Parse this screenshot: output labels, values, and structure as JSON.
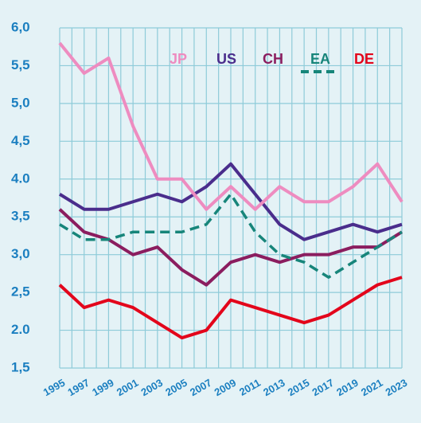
{
  "chart_data": {
    "type": "line",
    "x": [
      1995,
      1997,
      1999,
      2001,
      2003,
      2005,
      2007,
      2009,
      2011,
      2013,
      2015,
      2017,
      2019,
      2021,
      2023
    ],
    "xlim": [
      1995,
      2023
    ],
    "xticks": [
      1995,
      1997,
      1999,
      2001,
      2003,
      2005,
      2007,
      2009,
      2011,
      2013,
      2015,
      2017,
      2019,
      2021,
      2023
    ],
    "ylim": [
      1.5,
      6.0
    ],
    "yticks": [
      {
        "value": 1.5,
        "label": "1,5"
      },
      {
        "value": 2.0,
        "label": "2.0"
      },
      {
        "value": 2.5,
        "label": "2,5"
      },
      {
        "value": 3.0,
        "label": "3,0"
      },
      {
        "value": 3.5,
        "label": "3,5"
      },
      {
        "value": 4.0,
        "label": "4.0"
      },
      {
        "value": 4.5,
        "label": "4,5"
      },
      {
        "value": 5.0,
        "label": "5,0"
      },
      {
        "value": 5.5,
        "label": "5,5"
      },
      {
        "value": 6.0,
        "label": "6,0"
      }
    ],
    "grid": true,
    "series": [
      {
        "name": "JP",
        "color": "#ee8cc0",
        "values": [
          5.8,
          5.4,
          5.6,
          4.7,
          4.0,
          4.0,
          3.6,
          3.9,
          3.6,
          3.9,
          3.7,
          3.7,
          3.9,
          4.2,
          3.7
        ]
      },
      {
        "name": "US",
        "color": "#4a2d8c",
        "values": [
          3.8,
          3.6,
          3.6,
          3.7,
          3.8,
          3.7,
          3.9,
          4.2,
          3.8,
          3.4,
          3.2,
          3.3,
          3.4,
          3.3,
          3.4
        ]
      },
      {
        "name": "CH",
        "color": "#8b1d5f",
        "values": [
          3.6,
          3.3,
          3.2,
          3.0,
          3.1,
          2.8,
          2.6,
          2.9,
          3.0,
          2.9,
          3.0,
          3.0,
          3.1,
          3.1,
          3.3
        ]
      },
      {
        "name": "EA",
        "color": "#17857a",
        "dashed": true,
        "values": [
          3.4,
          3.2,
          3.2,
          3.3,
          3.3,
          3.3,
          3.4,
          3.8,
          3.3,
          3.0,
          2.9,
          2.7,
          2.9,
          3.1,
          3.3
        ]
      },
      {
        "name": "DE",
        "color": "#e3051b",
        "values": [
          2.6,
          2.3,
          2.4,
          2.3,
          2.1,
          1.9,
          2.0,
          2.4,
          2.3,
          2.2,
          2.1,
          2.2,
          2.4,
          2.6,
          2.7
        ]
      }
    ]
  }
}
